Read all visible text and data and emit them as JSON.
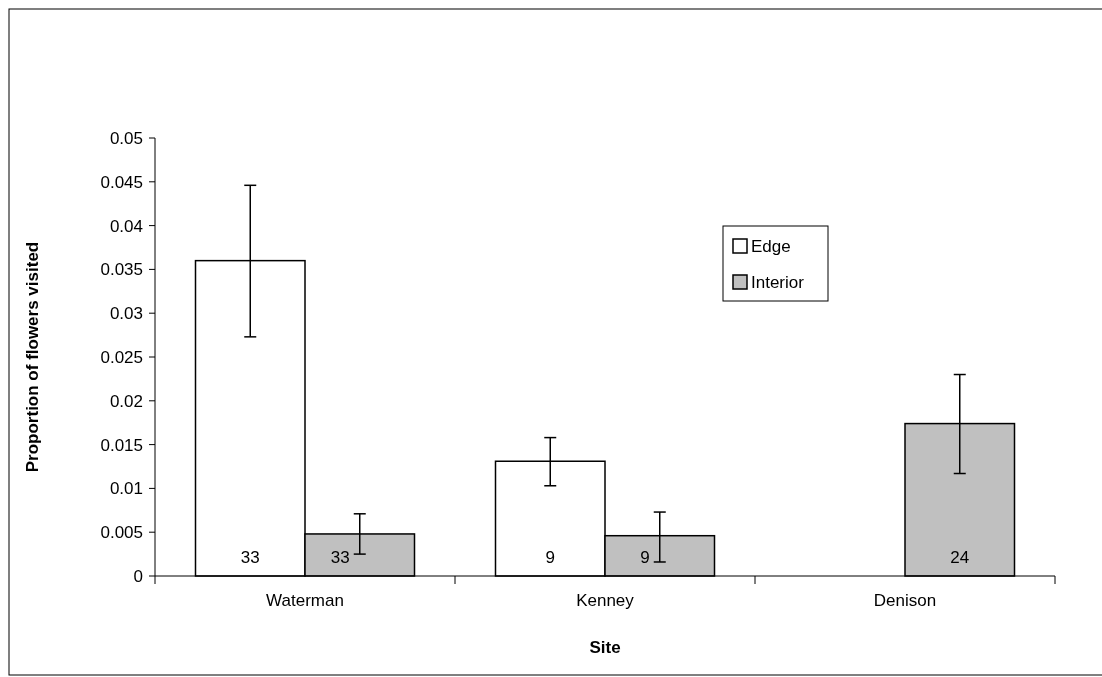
{
  "chart_data": {
    "type": "bar",
    "xlabel": "Site",
    "ylabel": "Proportion of flowers visited",
    "categories": [
      "Waterman",
      "Kenney",
      "Denison"
    ],
    "series": [
      {
        "name": "Edge",
        "color": "#ffffff",
        "values": [
          0.036,
          0.0131,
          null
        ],
        "errors": [
          [
            0.0273,
            0.0446
          ],
          [
            0.0103,
            0.0158
          ],
          null
        ]
      },
      {
        "name": "Interior",
        "color": "#c0c0c0",
        "values": [
          0.0048,
          0.0046,
          0.0174
        ],
        "errors": [
          [
            0.0025,
            0.0071
          ],
          [
            0.0016,
            0.0073
          ],
          [
            0.0117,
            0.023
          ]
        ]
      }
    ],
    "annotations": [
      {
        "text": "33",
        "x": "Waterman"
      },
      {
        "text": "33",
        "x": "Waterman"
      },
      {
        "text": "9",
        "x": "Kenney"
      },
      {
        "text": "9",
        "x": "Kenney"
      },
      {
        "text": "24",
        "x": "Denison"
      }
    ],
    "ylim": [
      0,
      0.05
    ],
    "yticks": [
      0,
      0.005,
      0.01,
      0.015,
      0.02,
      0.025,
      0.03,
      0.035,
      0.04,
      0.045,
      0.05
    ],
    "legend": "top right",
    "grid": false
  }
}
